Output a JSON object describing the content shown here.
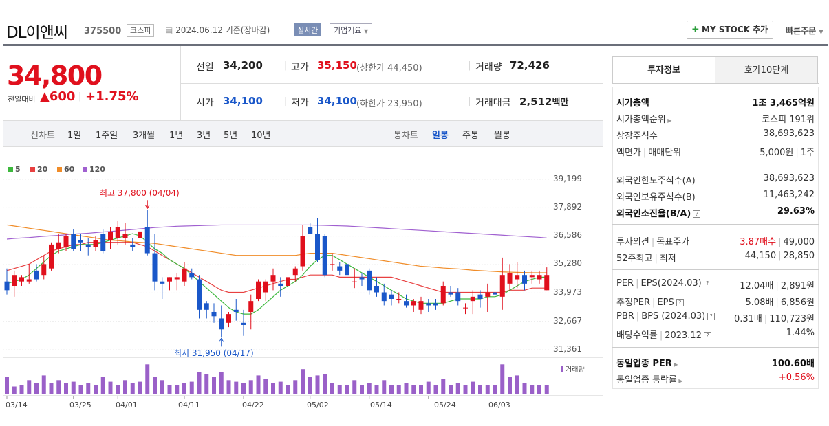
{
  "header": {
    "name": "DL이앤씨",
    "code": "375500",
    "market": "코스피",
    "date": "2024.06.12 기준(장마감)",
    "realtime": "실시간",
    "summary": "기업개요",
    "mystock": "MY STOCK 추가",
    "quick_order": "빠른주문"
  },
  "price": {
    "current": "34,800",
    "change_label": "전일대비",
    "change": "600",
    "change_pct": "+1.75%"
  },
  "quote": {
    "prev_label": "전일",
    "prev": "34,200",
    "high_label": "고가",
    "high": "35,150",
    "upper_limit": "(상한가 44,450)",
    "volume_label": "거래량",
    "volume": "72,426",
    "open_label": "시가",
    "open": "34,100",
    "low_label": "저가",
    "low": "34,100",
    "lower_limit": "(하한가 23,950)",
    "amount_label": "거래대금",
    "amount": "2,512",
    "amount_unit": "백만"
  },
  "period": {
    "line_label": "선차트",
    "line_items": [
      "1일",
      "1주일",
      "3개월",
      "1년",
      "3년",
      "5년",
      "10년"
    ],
    "candle_label": "봉차트",
    "candle_items": [
      "일봉",
      "주봉",
      "월봉"
    ]
  },
  "legend": [
    "5",
    "20",
    "60",
    "120"
  ],
  "legend_colors": [
    "#3db83d",
    "#e84040",
    "#f08c28",
    "#a060d0"
  ],
  "volume_label": "거래량",
  "chart_data": {
    "type": "candlestick",
    "y_ticks": [
      "39,199",
      "37,892",
      "36,586",
      "35,280",
      "33,973",
      "32,667",
      "31,361"
    ],
    "ylim": [
      31361,
      39199
    ],
    "x_ticks": [
      "03/14",
      "03/25",
      "04/01",
      "04/11",
      "04/22",
      "05/02",
      "05/14",
      "05/24",
      "06/03"
    ],
    "high_note": "최고 37,800 (04/04)",
    "low_note": "최저 31,950 (04/17)",
    "ohlc": [
      [
        34500,
        35100,
        33900,
        34100
      ],
      [
        34300,
        35000,
        33800,
        34800
      ],
      [
        34500,
        34800,
        34300,
        34700
      ],
      [
        34500,
        35300,
        34400,
        34600
      ],
      [
        35000,
        35300,
        34500,
        34600
      ],
      [
        34800,
        35700,
        34600,
        35300
      ],
      [
        35100,
        36300,
        35000,
        36200
      ],
      [
        36000,
        36700,
        35800,
        36300
      ],
      [
        36100,
        36700,
        35900,
        36600
      ],
      [
        36700,
        36900,
        35900,
        36000
      ],
      [
        36400,
        36700,
        35900,
        36300
      ],
      [
        36200,
        36500,
        35700,
        36100
      ],
      [
        36100,
        36600,
        35900,
        36400
      ],
      [
        36700,
        36900,
        35800,
        35900
      ],
      [
        36400,
        37000,
        36000,
        36800
      ],
      [
        36500,
        37300,
        36200,
        37000
      ],
      [
        36500,
        37200,
        36200,
        36700
      ],
      [
        36200,
        36500,
        35900,
        36100
      ],
      [
        36500,
        37000,
        36000,
        36800
      ],
      [
        37000,
        37800,
        35700,
        35800
      ],
      [
        35800,
        36700,
        34100,
        34500
      ],
      [
        34500,
        34700,
        33700,
        34400
      ],
      [
        34500,
        34700,
        34100,
        34700
      ],
      [
        34600,
        34900,
        34100,
        34700
      ],
      [
        34500,
        35400,
        34300,
        35100
      ],
      [
        34900,
        35100,
        34600,
        34700
      ],
      [
        34600,
        34800,
        32800,
        33200
      ],
      [
        33500,
        33600,
        32800,
        33200
      ],
      [
        33100,
        33500,
        32600,
        32900
      ],
      [
        32800,
        33400,
        31950,
        32300
      ],
      [
        32600,
        33100,
        32400,
        33000
      ],
      [
        33200,
        33700,
        32700,
        33100
      ],
      [
        32600,
        33200,
        32000,
        32500
      ],
      [
        33100,
        33900,
        32300,
        33600
      ],
      [
        33700,
        34600,
        33600,
        34500
      ],
      [
        34000,
        34600,
        33600,
        34500
      ],
      [
        34500,
        35100,
        34100,
        34800
      ],
      [
        34400,
        34700,
        33800,
        34300
      ],
      [
        34300,
        34800,
        34000,
        34700
      ],
      [
        34800,
        35200,
        34500,
        35100
      ],
      [
        35200,
        37100,
        35000,
        36600
      ],
      [
        37000,
        37200,
        36700,
        36700
      ],
      [
        36700,
        37400,
        35400,
        35500
      ],
      [
        36600,
        36700,
        34700,
        34800
      ],
      [
        35300,
        35800,
        35000,
        35300
      ],
      [
        35200,
        35400,
        34800,
        35000
      ],
      [
        35300,
        35500,
        34700,
        34800
      ],
      [
        34500,
        35100,
        34200,
        34500
      ],
      [
        34700,
        34900,
        34300,
        34600
      ],
      [
        35000,
        35100,
        33900,
        34100
      ],
      [
        34300,
        34700,
        33800,
        34000
      ],
      [
        34000,
        34400,
        33400,
        33600
      ],
      [
        33900,
        34100,
        33400,
        33700
      ],
      [
        33700,
        34000,
        33500,
        33700
      ],
      [
        33600,
        33900,
        33300,
        33400
      ],
      [
        33400,
        33700,
        33100,
        33600
      ],
      [
        33200,
        33800,
        33000,
        33600
      ],
      [
        33500,
        33700,
        33100,
        33400
      ],
      [
        33500,
        33700,
        33200,
        33400
      ],
      [
        33500,
        34500,
        33400,
        34300
      ],
      [
        34000,
        34300,
        33800,
        33900
      ],
      [
        34000,
        34200,
        33400,
        33600
      ],
      [
        33300,
        33500,
        33000,
        33300
      ],
      [
        33600,
        34100,
        33000,
        33800
      ],
      [
        33900,
        34100,
        33300,
        33700
      ],
      [
        33800,
        34400,
        33100,
        34000
      ],
      [
        34000,
        34300,
        33200,
        33900
      ],
      [
        33800,
        35600,
        33200,
        34800
      ],
      [
        34400,
        35300,
        34100,
        34900
      ],
      [
        34600,
        35400,
        34200,
        34800
      ],
      [
        34800,
        35000,
        34100,
        34400
      ],
      [
        34700,
        35000,
        34400,
        34800
      ],
      [
        34600,
        35000,
        34400,
        34800
      ],
      [
        34100,
        35150,
        34100,
        34800
      ]
    ],
    "ma": {
      "5": [
        34400,
        34500,
        34600,
        34800,
        35100,
        35400,
        35700,
        35900,
        36000,
        36100,
        36200,
        36200,
        36200,
        36300,
        36400,
        36500,
        36600,
        36700,
        36600,
        36300,
        36000,
        35800,
        35500,
        35300,
        35100,
        34800,
        34500,
        34200,
        33900,
        33600,
        33300,
        33100,
        33000,
        33000,
        33200,
        33500,
        33800,
        34100,
        34300,
        34500,
        34800,
        35200,
        35500,
        35700,
        35700,
        35500,
        35300,
        35100,
        34900,
        34700,
        34500,
        34300,
        34100,
        33900,
        33700,
        33600,
        33500,
        33500,
        33500,
        33500,
        33600,
        33700,
        33700,
        33700,
        33700,
        33800,
        33800,
        33900,
        34100,
        34300,
        34500,
        34600,
        34700,
        34700
      ],
      "20": [
        35000,
        35100,
        35200,
        35300,
        35500,
        35700,
        35900,
        36000,
        36100,
        36200,
        36200,
        36300,
        36300,
        36300,
        36300,
        36300,
        36300,
        36300,
        36200,
        36100,
        35900,
        35700,
        35500,
        35300,
        35100,
        34900,
        34700,
        34500,
        34300,
        34100,
        34000,
        34000,
        34000,
        34100,
        34200,
        34300,
        34400,
        34500,
        34600,
        34600,
        34700,
        34800,
        34800,
        34800,
        34800,
        34700,
        34700,
        34700,
        34700,
        34700,
        34700,
        34700,
        34700,
        34600,
        34500,
        34400,
        34300,
        34200,
        34100,
        34000,
        34000,
        34000,
        34000,
        34000,
        34000,
        34000,
        34000,
        34000,
        34100,
        34100,
        34100,
        34200,
        34200,
        34200
      ],
      "60": [
        37100,
        37050,
        37000,
        36950,
        36900,
        36850,
        36800,
        36750,
        36700,
        36650,
        36600,
        36550,
        36500,
        36450,
        36400,
        36380,
        36350,
        36320,
        36300,
        36280,
        36250,
        36200,
        36150,
        36100,
        36050,
        36000,
        35950,
        35900,
        35850,
        35800,
        35750,
        35700,
        35700,
        35700,
        35700,
        35700,
        35700,
        35700,
        35700,
        35700,
        35750,
        35800,
        35800,
        35800,
        35800,
        35750,
        35700,
        35650,
        35600,
        35550,
        35500,
        35450,
        35400,
        35350,
        35300,
        35250,
        35200,
        35180,
        35150,
        35120,
        35100,
        35080,
        35050,
        35020,
        35000,
        34980,
        34960,
        34940,
        34930,
        34920,
        34910,
        34900,
        34900,
        34900
      ],
      "120": [
        36450,
        36480,
        36500,
        36520,
        36550,
        36580,
        36600,
        36620,
        36650,
        36680,
        36700,
        36720,
        36750,
        36780,
        36800,
        36830,
        36860,
        36890,
        36920,
        36950,
        36980,
        37000,
        37020,
        37040,
        37050,
        37060,
        37070,
        37080,
        37090,
        37100,
        37100,
        37100,
        37100,
        37100,
        37100,
        37100,
        37100,
        37100,
        37100,
        37100,
        37100,
        37100,
        37090,
        37080,
        37070,
        37060,
        37050,
        37030,
        37010,
        36990,
        36970,
        36950,
        36930,
        36910,
        36890,
        36870,
        36850,
        36830,
        36810,
        36790,
        36770,
        36750,
        36730,
        36710,
        36690,
        36670,
        36650,
        36630,
        36610,
        36590,
        36570,
        36550,
        36530,
        36500
      ]
    },
    "volume_rel": [
      0.55,
      0.25,
      0.3,
      0.45,
      0.35,
      0.6,
      0.35,
      0.45,
      0.35,
      0.4,
      0.3,
      0.35,
      0.3,
      0.55,
      0.4,
      0.3,
      0.45,
      0.35,
      0.4,
      0.95,
      0.55,
      0.45,
      0.3,
      0.3,
      0.35,
      0.4,
      0.7,
      0.65,
      0.55,
      0.7,
      0.45,
      0.4,
      0.35,
      0.45,
      0.6,
      0.5,
      0.35,
      0.4,
      0.3,
      0.45,
      0.8,
      0.55,
      0.6,
      0.65,
      0.35,
      0.3,
      0.3,
      0.45,
      0.3,
      0.35,
      0.3,
      0.45,
      0.3,
      0.3,
      0.35,
      0.3,
      0.3,
      0.4,
      0.3,
      0.5,
      0.3,
      0.35,
      0.3,
      0.4,
      0.3,
      0.3,
      0.3,
      0.95,
      0.55,
      0.6,
      0.35,
      0.3,
      0.3,
      0.3
    ]
  },
  "tabs": [
    "투자정보",
    "호가10단계"
  ],
  "info": {
    "group1": [
      {
        "label": "시가총액",
        "value": "1조 3,465억원",
        "bold": true
      },
      {
        "label": "시가총액순위",
        "value": "코스피 191위"
      },
      {
        "label": "상장주식수",
        "value": "38,693,623"
      },
      {
        "label": "액면가",
        "label2": "매매단위",
        "value": "5,000원",
        "value2": "1주"
      }
    ],
    "group2": [
      {
        "label": "외국인한도주식수(A)",
        "value": "38,693,623"
      },
      {
        "label": "외국인보유주식수(B)",
        "value": "11,463,242"
      },
      {
        "label": "외국인소진율(B/A)",
        "value": "29.63%",
        "bold": true
      }
    ],
    "group3": [
      {
        "label": "투자의견",
        "label2": "목표주가",
        "value": "3.87매수",
        "value2": "49,000"
      },
      {
        "label": "52주최고",
        "label2": "최저",
        "value": "44,150",
        "value2": "28,850"
      }
    ],
    "group4": [
      {
        "label": "PER",
        "label2": "EPS(2024.03)",
        "value": "12.04배",
        "value2": "2,891원"
      },
      {
        "label": "추정PER",
        "label2": "EPS",
        "value": "5.08배",
        "value2": "6,856원"
      },
      {
        "label": "PBR",
        "label2": "BPS (2024.03)",
        "value": "0.31배",
        "value2": "110,723원"
      },
      {
        "label": "배당수익률",
        "label2": "2023.12",
        "value": "1.44%"
      }
    ],
    "group5": [
      {
        "label": "동일업종 PER",
        "value": "100.60배",
        "bold": true
      },
      {
        "label": "동일업종 등락률",
        "value": "+0.56%"
      }
    ]
  }
}
